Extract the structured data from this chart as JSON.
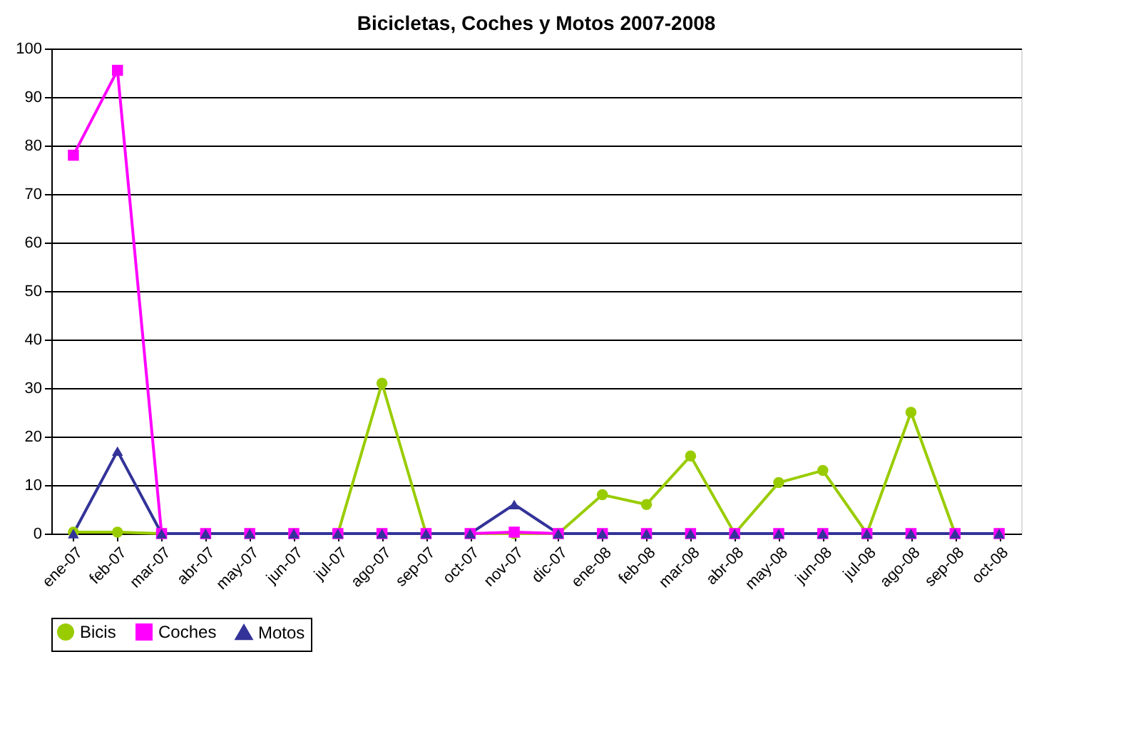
{
  "chart_data": {
    "type": "line",
    "title": "Bicicletas, Coches y Motos 2007-2008",
    "categories": [
      "ene-07",
      "feb-07",
      "mar-07",
      "abr-07",
      "may-07",
      "jun-07",
      "jul-07",
      "ago-07",
      "sep-07",
      "oct-07",
      "nov-07",
      "dic-07",
      "ene-08",
      "feb-08",
      "mar-08",
      "abr-08",
      "may-08",
      "jun-08",
      "jul-08",
      "ago-08",
      "sep-08",
      "oct-08"
    ],
    "series": [
      {
        "name": "Bicis",
        "color": "#99cc00",
        "marker": "circle",
        "values": [
          0.3,
          0.3,
          0,
          0,
          0,
          0,
          0,
          31,
          0,
          0,
          0,
          0,
          8,
          6,
          16,
          0,
          10.5,
          13,
          0,
          25,
          0,
          0
        ]
      },
      {
        "name": "Coches",
        "color": "#ff00ff",
        "marker": "square",
        "values": [
          78,
          95.5,
          0,
          0,
          0,
          0,
          0,
          0,
          0,
          0,
          0.3,
          0,
          0,
          0,
          0,
          0,
          0,
          0,
          0,
          0,
          0,
          0
        ]
      },
      {
        "name": "Motos",
        "color": "#333399",
        "marker": "triangle",
        "values": [
          0,
          17,
          0,
          0,
          0,
          0,
          0,
          0,
          0,
          0,
          6,
          0,
          0,
          0,
          0,
          0,
          0,
          0,
          0,
          0,
          0,
          0
        ]
      }
    ],
    "ylim": [
      0,
      100
    ],
    "yticks": [
      0,
      10,
      20,
      30,
      40,
      50,
      60,
      70,
      80,
      90,
      100
    ],
    "grid": "y",
    "legend": "bottom"
  }
}
